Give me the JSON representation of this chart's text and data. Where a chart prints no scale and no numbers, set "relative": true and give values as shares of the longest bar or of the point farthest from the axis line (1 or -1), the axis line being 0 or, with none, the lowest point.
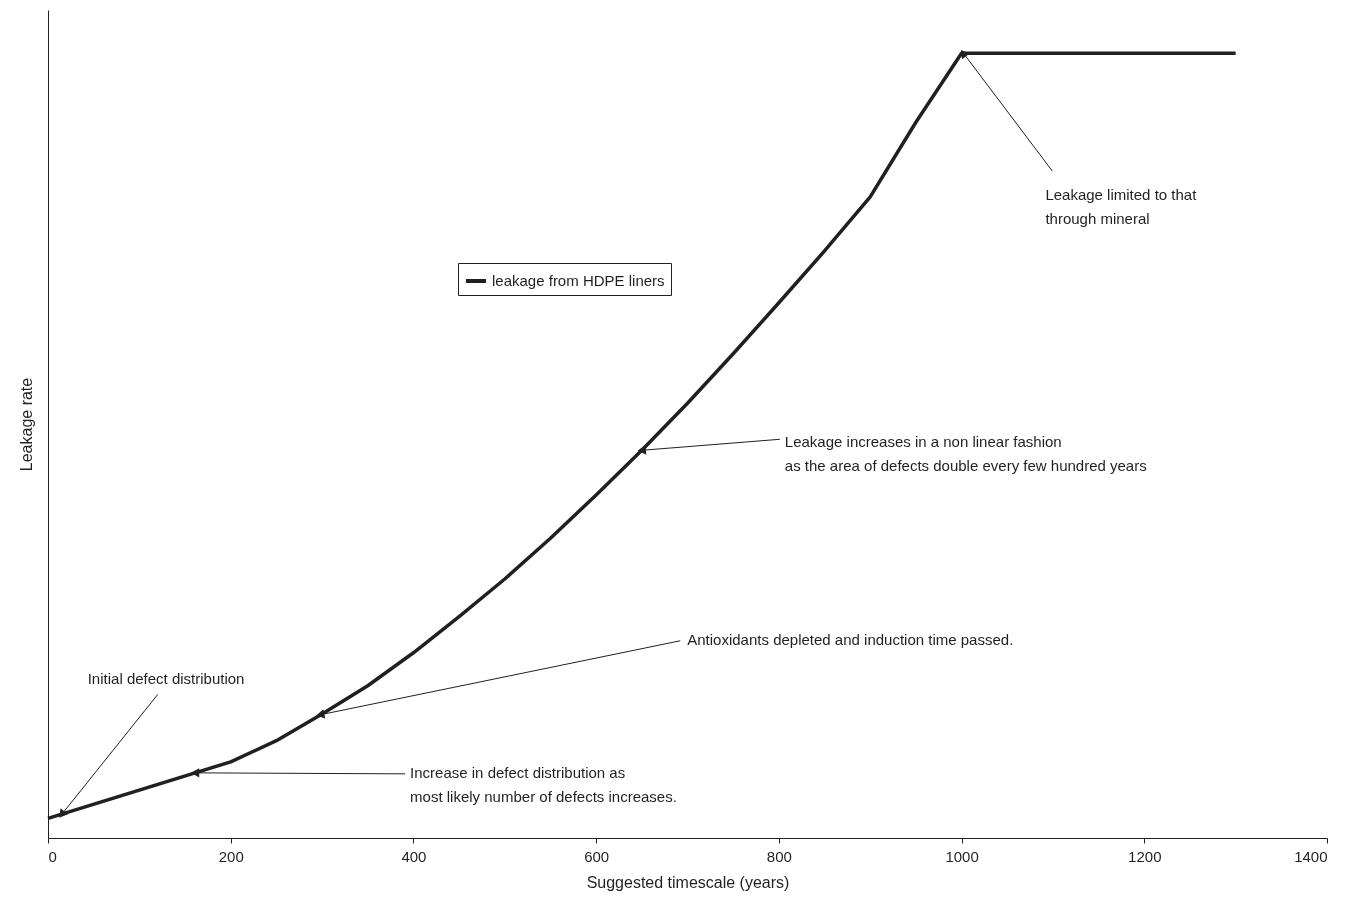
{
  "chart_data": {
    "type": "line",
    "xlabel": "Suggested timescale (years)",
    "ylabel": "Leakage rate",
    "relative": true,
    "xlim": [
      0,
      1400
    ],
    "xticks": [
      0,
      200,
      400,
      600,
      800,
      1000,
      1200,
      1400
    ],
    "grid": false,
    "legend": "top",
    "marker": "none",
    "line_style": "solid",
    "series": [
      {
        "name": "leakage from HDPE liners",
        "color": "#231f20",
        "x": [
          0,
          200,
          250,
          300,
          350,
          400,
          450,
          500,
          550,
          600,
          650,
          700,
          750,
          800,
          850,
          900,
          950,
          1000,
          1300
        ],
        "values": [
          0.025,
          0.097,
          0.124,
          0.158,
          0.194,
          0.236,
          0.282,
          0.33,
          0.382,
          0.437,
          0.494,
          0.554,
          0.617,
          0.682,
          0.748,
          0.817,
          0.912,
          1,
          1
        ]
      }
    ],
    "annotations": [
      {
        "text": "Initial defect distribution",
        "x": 15,
        "y": 0.03
      },
      {
        "text": "Increase in defect distribution as\nmost likely number of defects increases.",
        "x": 161,
        "y": 0.083
      },
      {
        "text": "Antioxidants depleted and induction time passed.",
        "x": 298,
        "y": 0.157
      },
      {
        "text": "Leakage increases in a non linear fashion\nas the area of defects double every few hundred years",
        "x": 650,
        "y": 0.494
      },
      {
        "text": "Leakage limited to that\nthrough mineral",
        "x": 1002,
        "y": 1
      }
    ]
  }
}
